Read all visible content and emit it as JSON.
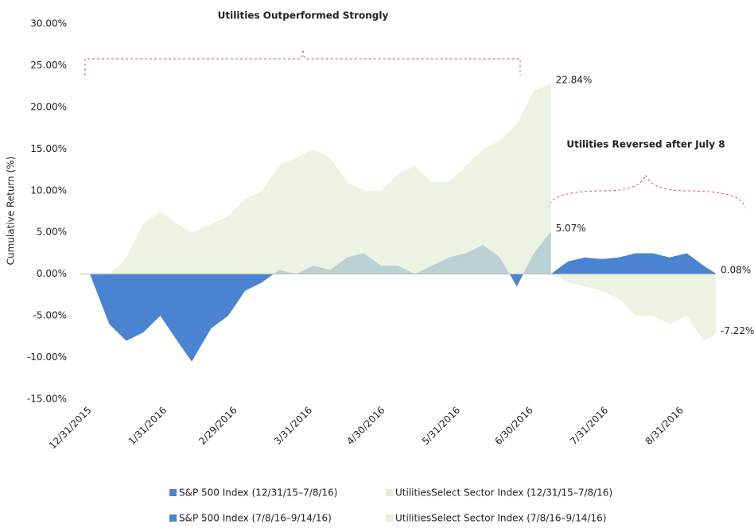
{
  "chart_data": {
    "type": "area",
    "y_label": "Cumulative Return (%)",
    "annotations": [
      "Utilities Outperformed  Strongly",
      "Utilities Reversed after July 8"
    ],
    "xlim": [
      "12/31/2015",
      "9/14/2016"
    ],
    "xticks": [
      "12/31/2015",
      "1/31/2016",
      "2/29/2016",
      "3/31/2016",
      "4/30/2016",
      "5/31/2016",
      "6/30/2016",
      "7/31/2016",
      "8/31/2016"
    ],
    "ylim": [
      -15,
      30
    ],
    "yticks": [
      {
        "value": 30,
        "label": "30.00%"
      },
      {
        "value": 25,
        "label": "25.00%"
      },
      {
        "value": 20,
        "label": "20.00%"
      },
      {
        "value": 15,
        "label": "15.00%"
      },
      {
        "value": 10,
        "label": "10.00%"
      },
      {
        "value": 5,
        "label": "5.00%"
      },
      {
        "value": 0,
        "label": "0.00%"
      },
      {
        "value": -5,
        "label": "-5.00%"
      },
      {
        "value": -10,
        "label": "-10.00%"
      },
      {
        "value": -15,
        "label": "-15.00%"
      }
    ],
    "series": [
      {
        "name": "S&P 500 Index (12/31/15–7/8/16)",
        "color": "#4a84d0",
        "x": [
          "12/31/2015",
          "1/8/2016",
          "1/15/2016",
          "1/22/2016",
          "1/29/2016",
          "2/5/2016",
          "2/11/2016",
          "2/19/2016",
          "2/26/2016",
          "3/4/2016",
          "3/11/2016",
          "3/18/2016",
          "3/25/2016",
          "4/1/2016",
          "4/8/2016",
          "4/15/2016",
          "4/22/2016",
          "4/29/2016",
          "5/6/2016",
          "5/13/2016",
          "5/20/2016",
          "5/27/2016",
          "6/3/2016",
          "6/10/2016",
          "6/17/2016",
          "6/24/2016",
          "7/1/2016",
          "7/8/2016"
        ],
        "values": [
          0,
          -6,
          -8,
          -7,
          -5,
          -8,
          -10.5,
          -6.5,
          -5,
          -2,
          -1,
          0.5,
          0,
          1,
          0.5,
          2,
          2.5,
          1,
          1,
          0,
          1,
          2,
          2.5,
          3.5,
          2,
          -1.5,
          2.5,
          5.07
        ],
        "value_labels": [
          null,
          null,
          null,
          null,
          null,
          null,
          null,
          null,
          null,
          null,
          null,
          null,
          null,
          null,
          null,
          null,
          null,
          null,
          null,
          null,
          null,
          null,
          null,
          null,
          null,
          null,
          null,
          "5.07%"
        ]
      },
      {
        "name": "UtilitiesSelect Sector Index (12/31/15–7/8/16)",
        "color": "#e6eed8",
        "x": [
          "12/31/2015",
          "1/8/2016",
          "1/15/2016",
          "1/22/2016",
          "1/29/2016",
          "2/5/2016",
          "2/11/2016",
          "2/19/2016",
          "2/26/2016",
          "3/4/2016",
          "3/11/2016",
          "3/18/2016",
          "3/25/2016",
          "4/1/2016",
          "4/8/2016",
          "4/15/2016",
          "4/22/2016",
          "4/29/2016",
          "5/6/2016",
          "5/13/2016",
          "5/20/2016",
          "5/27/2016",
          "6/3/2016",
          "6/10/2016",
          "6/17/2016",
          "6/24/2016",
          "7/1/2016",
          "7/8/2016"
        ],
        "values": [
          0,
          0,
          2,
          6,
          7.5,
          6,
          5,
          6,
          7,
          9,
          10,
          13,
          14,
          15,
          14,
          11,
          10,
          10,
          12,
          13,
          11,
          11,
          13,
          15,
          16,
          18,
          22,
          22.84
        ],
        "value_labels": [
          null,
          null,
          null,
          null,
          null,
          null,
          null,
          null,
          null,
          null,
          null,
          null,
          null,
          null,
          null,
          null,
          null,
          null,
          null,
          null,
          null,
          null,
          null,
          null,
          null,
          null,
          null,
          "22.84%"
        ]
      },
      {
        "name": "S&P 500 Index (7/8/16–9/14/16)",
        "color": "#4a84d0",
        "x": [
          "7/8/2016",
          "7/15/2016",
          "7/22/2016",
          "7/29/2016",
          "8/5/2016",
          "8/12/2016",
          "8/19/2016",
          "8/26/2016",
          "9/2/2016",
          "9/9/2016",
          "9/14/2016"
        ],
        "values": [
          0,
          1.5,
          2,
          1.8,
          2,
          2.5,
          2.5,
          2,
          2.5,
          1,
          0.08
        ],
        "value_labels": [
          null,
          null,
          null,
          null,
          null,
          null,
          null,
          null,
          null,
          null,
          "0.08%"
        ]
      },
      {
        "name": "UtilitiesSelect Sector Index (7/8/16–9/14/16)",
        "color": "#e6eed8",
        "x": [
          "7/8/2016",
          "7/15/2016",
          "7/22/2016",
          "7/29/2016",
          "8/5/2016",
          "8/12/2016",
          "8/19/2016",
          "8/26/2016",
          "9/2/2016",
          "9/9/2016",
          "9/14/2016"
        ],
        "values": [
          0,
          -1,
          -1.5,
          -2,
          -3,
          -5,
          -5,
          -6,
          -5,
          -8,
          -7.22
        ],
        "value_labels": [
          null,
          null,
          null,
          null,
          null,
          null,
          null,
          null,
          null,
          null,
          "-7.22%"
        ]
      }
    ]
  }
}
